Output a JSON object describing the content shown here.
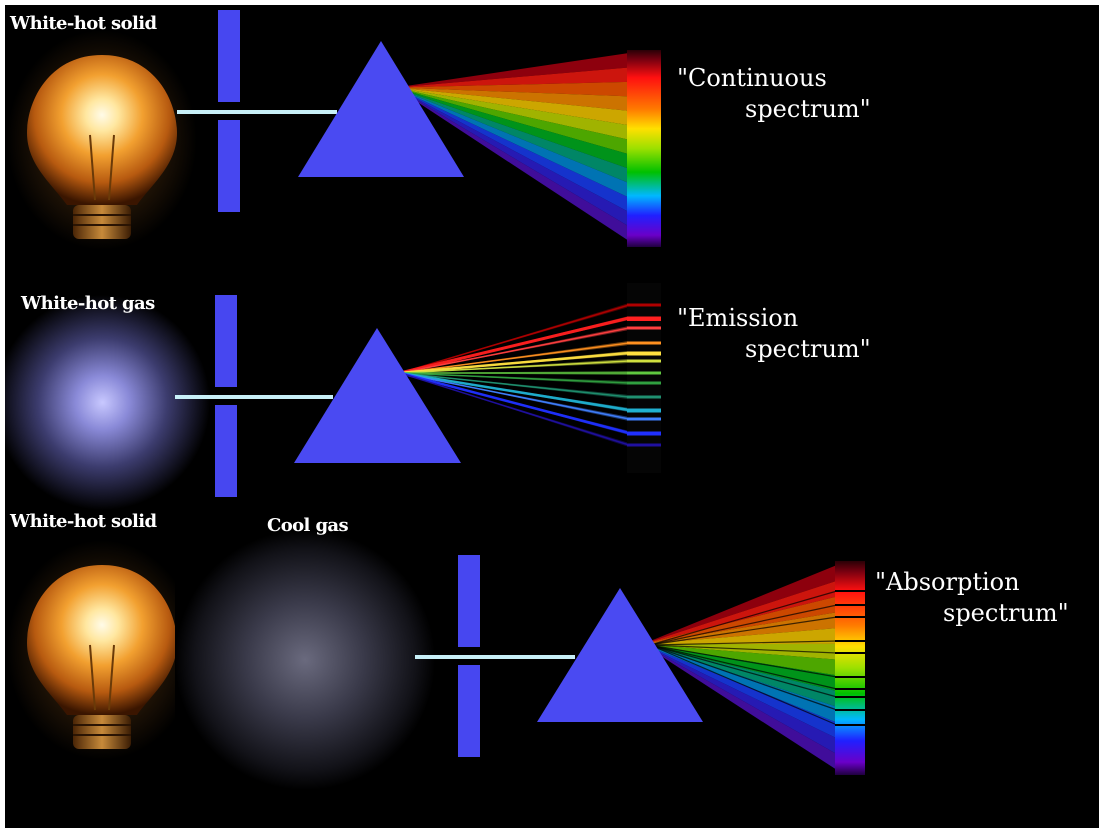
{
  "rows": [
    {
      "id": "continuous",
      "source_label": "White-hot solid",
      "caption_line1": "\"Continuous",
      "caption_line2": "spectrum\""
    },
    {
      "id": "emission",
      "source_label": "White-hot gas",
      "caption_line1": "\"Emission",
      "caption_line2": "spectrum\""
    },
    {
      "id": "absorption",
      "source_label": "White-hot solid",
      "gas_label": "Cool gas",
      "caption_line1": "\"Absorption",
      "caption_line2": "spectrum\""
    }
  ],
  "colors": {
    "background": "#000000",
    "slit": "#4747f0",
    "prism": "#4a4af2",
    "light_beam": "#c8f0f8",
    "label_text": "#ffffff"
  },
  "icons": [
    "light-bulb-icon",
    "glowing-gas-icon",
    "cool-gas-cloud-icon",
    "slit-icon",
    "prism-icon",
    "spectrum-strip-icon"
  ]
}
